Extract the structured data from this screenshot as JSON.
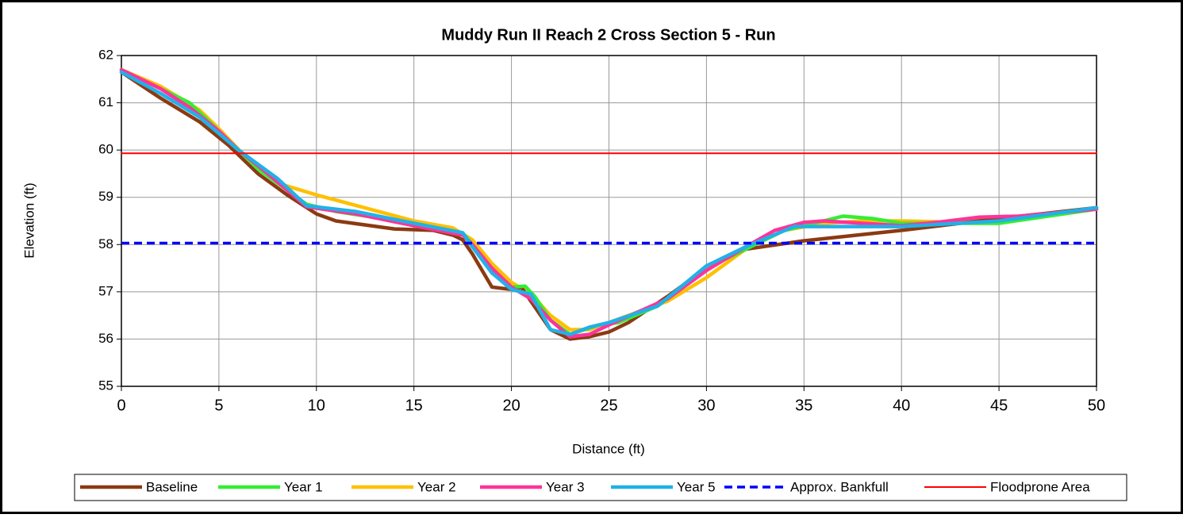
{
  "chart_data": {
    "type": "line",
    "title": "Muddy Run II Reach 2 Cross Section 5 - Run",
    "xlabel": "Distance (ft)",
    "ylabel": "Elevation (ft)",
    "xlim": [
      0,
      50
    ],
    "xticks": [
      0,
      5,
      10,
      15,
      20,
      25,
      30,
      35,
      40,
      45,
      50
    ],
    "ylim": [
      55,
      62
    ],
    "yticks": [
      55,
      56,
      57,
      58,
      59,
      60,
      61,
      62
    ],
    "grid": true,
    "legend": "bottom",
    "series": [
      {
        "name": "Baseline",
        "color": "#8b3a12",
        "style": "solid",
        "x": [
          0,
          2,
          4,
          5.5,
          7,
          8.5,
          10,
          11,
          14,
          16,
          17,
          17.5,
          18,
          19,
          20,
          20.5,
          21,
          22,
          23,
          24,
          25,
          26,
          28,
          30,
          32,
          35,
          40,
          45,
          50
        ],
        "values": [
          61.65,
          61.1,
          60.6,
          60.1,
          59.5,
          59.05,
          58.65,
          58.5,
          58.33,
          58.3,
          58.2,
          58.1,
          57.8,
          57.1,
          57.05,
          57.1,
          56.8,
          56.2,
          56.0,
          56.05,
          56.15,
          56.35,
          56.9,
          57.5,
          57.9,
          58.08,
          58.3,
          58.55,
          58.78
        ]
      },
      {
        "name": "Year 1",
        "color": "#33ee33",
        "style": "solid",
        "x": [
          0,
          2,
          3.5,
          5,
          6,
          7,
          9.5,
          11,
          15,
          17.5,
          18,
          19,
          20,
          20.7,
          21.2,
          22,
          23,
          24.5,
          25.5,
          27.5,
          30,
          32,
          34,
          35.5,
          37,
          38.5,
          40,
          45,
          50
        ],
        "values": [
          61.7,
          61.3,
          61.0,
          60.4,
          60.0,
          59.6,
          58.85,
          58.7,
          58.45,
          58.25,
          58.0,
          57.4,
          57.1,
          57.12,
          56.9,
          56.4,
          56.1,
          56.3,
          56.35,
          56.7,
          57.5,
          57.9,
          58.3,
          58.45,
          58.6,
          58.55,
          58.45,
          58.45,
          58.75
        ]
      },
      {
        "name": "Year 2",
        "color": "#ffc000",
        "style": "solid",
        "x": [
          0,
          2,
          4,
          5,
          6.5,
          8,
          10,
          15,
          17,
          18,
          19,
          20,
          21,
          22,
          23,
          24,
          25,
          26,
          28,
          30,
          32,
          34,
          36,
          38,
          40,
          42,
          45,
          50
        ],
        "values": [
          61.7,
          61.35,
          60.85,
          60.45,
          59.8,
          59.3,
          59.05,
          58.5,
          58.35,
          58.1,
          57.6,
          57.2,
          56.95,
          56.5,
          56.2,
          56.2,
          56.35,
          56.5,
          56.8,
          57.3,
          57.9,
          58.3,
          58.45,
          58.5,
          58.5,
          58.48,
          58.55,
          58.75
        ]
      },
      {
        "name": "Year 3",
        "color": "#ff3399",
        "style": "solid",
        "x": [
          0,
          2,
          3.5,
          5,
          6,
          7.5,
          9.5,
          12,
          15,
          17.5,
          18,
          19,
          20,
          21,
          22,
          23,
          24,
          25,
          28,
          30,
          32,
          33.5,
          35,
          36,
          40,
          42,
          44,
          46,
          50
        ],
        "values": [
          61.7,
          61.3,
          60.9,
          60.4,
          60.0,
          59.5,
          58.8,
          58.65,
          58.4,
          58.2,
          58.0,
          57.5,
          57.1,
          56.85,
          56.4,
          56.05,
          56.1,
          56.3,
          56.85,
          57.45,
          57.95,
          58.3,
          58.47,
          58.5,
          58.4,
          58.48,
          58.58,
          58.6,
          58.75
        ]
      },
      {
        "name": "Year 5",
        "color": "#22b0e8",
        "style": "solid",
        "x": [
          0,
          2,
          4,
          6,
          8,
          9.5,
          12,
          15,
          17.5,
          18,
          19,
          20,
          21,
          22,
          23,
          24,
          25,
          27.5,
          30,
          32,
          34.5,
          40,
          45,
          50
        ],
        "values": [
          61.65,
          61.2,
          60.7,
          60.0,
          59.4,
          58.82,
          58.7,
          58.45,
          58.25,
          57.95,
          57.4,
          57.05,
          56.95,
          56.2,
          56.1,
          56.25,
          56.35,
          56.7,
          57.55,
          57.95,
          58.38,
          58.38,
          58.5,
          58.78
        ]
      },
      {
        "name": "Approx. Bankfull",
        "color": "#0000ff",
        "style": "dashed",
        "x": [
          0,
          50
        ],
        "values": [
          58.03,
          58.03
        ]
      },
      {
        "name": "Floodprone Area",
        "color": "#ff0000",
        "style": "thin",
        "x": [
          0,
          50
        ],
        "values": [
          59.93,
          59.93
        ]
      }
    ]
  }
}
